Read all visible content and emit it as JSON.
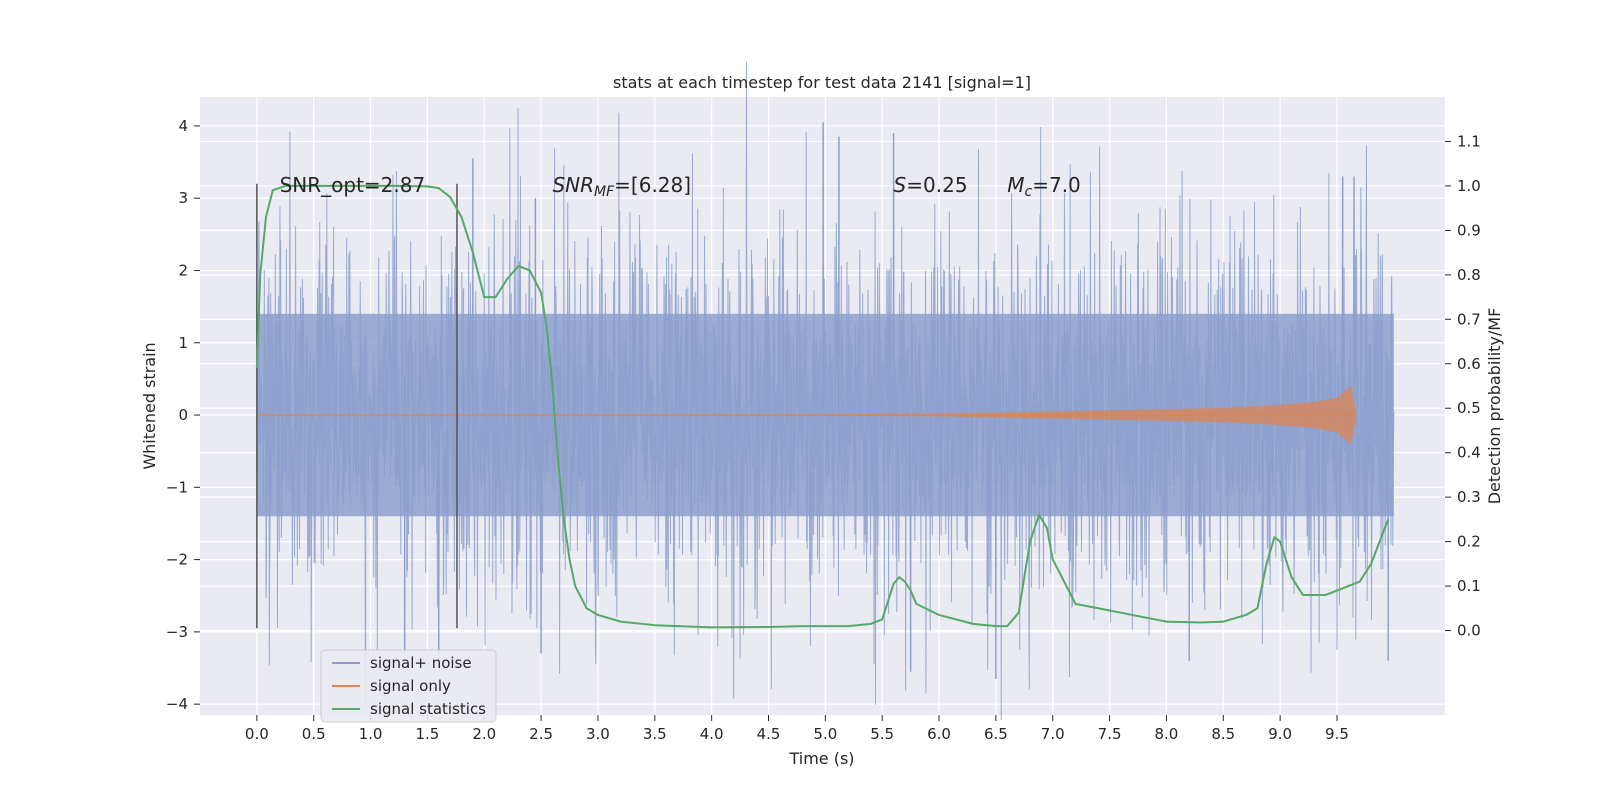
{
  "chart_data": {
    "type": "line",
    "title": "stats at each timestep for test data 2141 [signal=1]",
    "xlabel": "Time (s)",
    "ylabel": "Whitened strain",
    "y2label": "Detection probability/MF",
    "xlim": [
      -0.5,
      10.45
    ],
    "ylim": [
      -4.15,
      4.4
    ],
    "y2lim": [
      -0.19,
      1.2
    ],
    "x_ticks": [
      0.0,
      0.5,
      1.0,
      1.5,
      2.0,
      2.5,
      3.0,
      3.5,
      4.0,
      4.5,
      5.0,
      5.5,
      6.0,
      6.5,
      7.0,
      7.5,
      8.0,
      8.5,
      9.0,
      9.5
    ],
    "x_tick_labels": [
      "0.0",
      "0.5",
      "1.0",
      "1.5",
      "2.0",
      "2.5",
      "3.0",
      "3.5",
      "4.0",
      "4.5",
      "5.0",
      "5.5",
      "6.0",
      "6.5",
      "7.0",
      "7.5",
      "8.0",
      "8.5",
      "9.0",
      "9.5"
    ],
    "y_ticks": [
      -4,
      -3,
      -2,
      -1,
      0,
      1,
      2,
      3,
      4
    ],
    "y_tick_labels": [
      "−4",
      "−3",
      "−2",
      "−1",
      "0",
      "1",
      "2",
      "3",
      "4"
    ],
    "y2_ticks": [
      0.0,
      0.1,
      0.2,
      0.3,
      0.4,
      0.5,
      0.6,
      0.7,
      0.8,
      0.9,
      1.0,
      1.1
    ],
    "y2_tick_labels": [
      "0.0",
      "0.1",
      "0.2",
      "0.3",
      "0.4",
      "0.5",
      "0.6",
      "0.7",
      "0.8",
      "0.9",
      "1.0",
      "1.1"
    ],
    "grid": true,
    "legend_position": "lower-left",
    "series": [
      {
        "name": "signal+ noise",
        "axis": "left",
        "color": "#8c9fcc",
        "note_kind": "dense noisy strain",
        "x_range": [
          0.0,
          10.0
        ],
        "core_band": [
          -1.4,
          1.4
        ],
        "peaks": [
          {
            "x": 1.9,
            "y": 3.55
          },
          {
            "x": 2.45,
            "y": 3.0
          },
          {
            "x": 4.98,
            "y": 4.05
          },
          {
            "x": 5.12,
            "y": 3.85
          },
          {
            "x": 5.6,
            "y": 3.9
          },
          {
            "x": 9.55,
            "y": 3.3
          },
          {
            "x": 9.65,
            "y": 3.3
          },
          {
            "x": 1.3,
            "y": -3.3
          },
          {
            "x": 1.6,
            "y": -3.4
          },
          {
            "x": 2.5,
            "y": -3.3
          },
          {
            "x": 5.75,
            "y": -3.55
          },
          {
            "x": 6.5,
            "y": -3.65
          },
          {
            "x": 8.2,
            "y": -3.4
          },
          {
            "x": 9.95,
            "y": -3.4
          }
        ]
      },
      {
        "name": "signal only",
        "axis": "left",
        "color": "#dd8452",
        "x": [
          0.0,
          5.0,
          6.0,
          7.0,
          8.0,
          8.5,
          9.0,
          9.3,
          9.5,
          9.62,
          9.67
        ],
        "envelope": [
          0.005,
          0.01,
          0.02,
          0.05,
          0.08,
          0.1,
          0.14,
          0.18,
          0.24,
          0.4,
          0.05
        ]
      },
      {
        "name": "signal statistics",
        "axis": "right",
        "color": "#55a868",
        "x": [
          0.0,
          0.03,
          0.08,
          0.14,
          0.25,
          0.5,
          1.0,
          1.2,
          1.5,
          1.6,
          1.7,
          1.8,
          1.9,
          2.0,
          2.1,
          2.2,
          2.3,
          2.4,
          2.5,
          2.55,
          2.6,
          2.65,
          2.7,
          2.75,
          2.8,
          2.9,
          3.0,
          3.2,
          3.5,
          4.0,
          4.5,
          4.8,
          5.0,
          5.2,
          5.4,
          5.5,
          5.6,
          5.65,
          5.7,
          5.75,
          5.8,
          6.0,
          6.3,
          6.5,
          6.6,
          6.7,
          6.8,
          6.88,
          6.95,
          7.0,
          7.2,
          7.5,
          7.8,
          8.0,
          8.3,
          8.5,
          8.7,
          8.8,
          8.88,
          8.95,
          9.0,
          9.1,
          9.2,
          9.4,
          9.5,
          9.6,
          9.7,
          9.8,
          9.95
        ],
        "y": [
          0.59,
          0.8,
          0.93,
          0.99,
          1.0,
          1.0,
          1.0,
          1.0,
          0.999,
          0.995,
          0.975,
          0.93,
          0.85,
          0.75,
          0.75,
          0.79,
          0.82,
          0.81,
          0.76,
          0.68,
          0.55,
          0.38,
          0.25,
          0.16,
          0.1,
          0.05,
          0.035,
          0.02,
          0.012,
          0.007,
          0.008,
          0.01,
          0.01,
          0.01,
          0.015,
          0.025,
          0.105,
          0.12,
          0.11,
          0.09,
          0.06,
          0.035,
          0.015,
          0.01,
          0.01,
          0.04,
          0.2,
          0.26,
          0.23,
          0.16,
          0.06,
          0.045,
          0.03,
          0.02,
          0.018,
          0.02,
          0.035,
          0.05,
          0.15,
          0.21,
          0.2,
          0.12,
          0.08,
          0.08,
          0.09,
          0.1,
          0.11,
          0.15,
          0.25
        ]
      }
    ],
    "vertical_markers": [
      {
        "x": 0.0,
        "y_range": [
          -2.95,
          3.2
        ],
        "color": "#555555"
      },
      {
        "x": 1.76,
        "y_range": [
          -2.95,
          3.2
        ],
        "color": "#555555"
      }
    ],
    "annotations": [
      {
        "segments": [
          {
            "text": "SNR_opt=2.87",
            "italic": false
          }
        ],
        "x": 0.2,
        "y": 3.18
      },
      {
        "segments": [
          {
            "text": "SNR",
            "italic": true
          },
          {
            "text": "MF",
            "italic": true,
            "sub": true
          },
          {
            "text": "=[6.28]",
            "italic": false
          }
        ],
        "x": 2.6,
        "y": 3.18
      },
      {
        "segments": [
          {
            "text": "S",
            "italic": true
          },
          {
            "text": "=0.25",
            "italic": false
          }
        ],
        "x": 5.6,
        "y": 3.18
      },
      {
        "segments": [
          {
            "text": "M",
            "italic": true
          },
          {
            "text": "c",
            "italic": true,
            "sub": true
          },
          {
            "text": "=7.0",
            "italic": false
          }
        ],
        "x": 6.6,
        "y": 3.18
      }
    ]
  }
}
